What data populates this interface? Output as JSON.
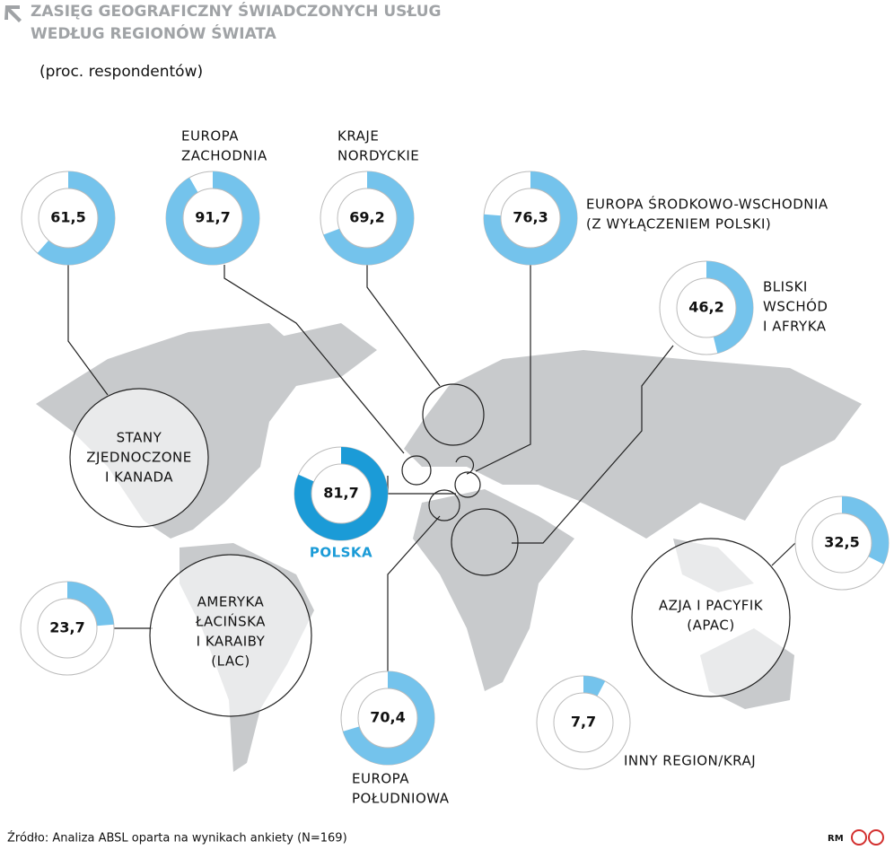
{
  "title": [
    "ZASIĘG GEOGRAFICZNY ŚWIADCZONYCH USŁUG",
    "WEDŁUG REGIONÓW ŚWIATA"
  ],
  "subtitle": "(proc. respondentów)",
  "source": "Źródło: Analiza ABSL oparta na wynikach ankiety (N=169)",
  "credit": "RM",
  "chart_data": [
    {
      "type": "donut",
      "label": [
        "STANY",
        "ZJEDNOCZONE",
        "I KANADA"
      ],
      "value": 61.5,
      "value_label": "61,5",
      "color": "#74c3ec"
    },
    {
      "type": "donut",
      "label": [
        "EUROPA",
        "ZACHODNIA"
      ],
      "value": 91.7,
      "value_label": "91,7",
      "color": "#74c3ec"
    },
    {
      "type": "donut",
      "label": [
        "KRAJE",
        "NORDYCKIE"
      ],
      "value": 69.2,
      "value_label": "69,2",
      "color": "#74c3ec"
    },
    {
      "type": "donut",
      "label": [
        "EUROPA ŚRODKOWO-WSCHODNIA",
        "(Z WYŁĄCZENIEM POLSKI)"
      ],
      "value": 76.3,
      "value_label": "76,3",
      "color": "#74c3ec"
    },
    {
      "type": "donut",
      "label": [
        "BLISKI",
        "WSCHÓD",
        "I AFRYKA"
      ],
      "value": 46.2,
      "value_label": "46,2",
      "color": "#74c3ec"
    },
    {
      "type": "donut",
      "label": [
        "POLSKA"
      ],
      "value": 81.7,
      "value_label": "81,7",
      "color": "#1b9bd7"
    },
    {
      "type": "donut",
      "label": [
        "AZJA I PACYFIK",
        "(APAC)"
      ],
      "value": 32.5,
      "value_label": "32,5",
      "color": "#74c3ec"
    },
    {
      "type": "donut",
      "label": [
        "AMERYKA",
        "ŁACIŃSKA",
        "I KARAIBY",
        "(LAC)"
      ],
      "value": 23.7,
      "value_label": "23,7",
      "color": "#74c3ec"
    },
    {
      "type": "donut",
      "label": [
        "EUROPA",
        "POŁUDNIOWA"
      ],
      "value": 70.4,
      "value_label": "70,4",
      "color": "#74c3ec"
    },
    {
      "type": "donut",
      "label": [
        "INNY REGION/KRAJ"
      ],
      "value": 7.7,
      "value_label": "7,7",
      "color": "#74c3ec"
    }
  ]
}
